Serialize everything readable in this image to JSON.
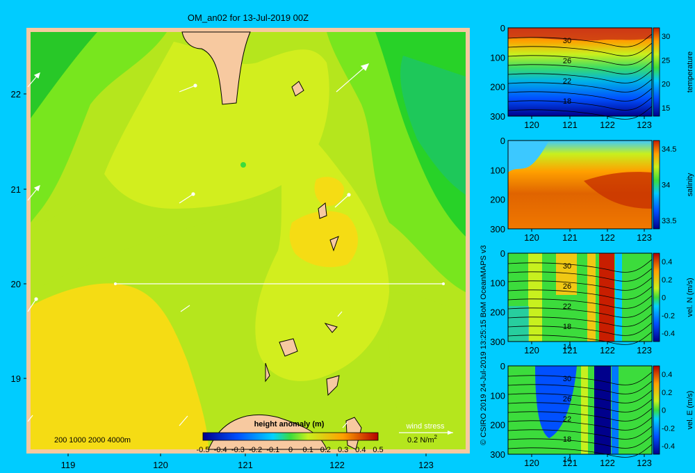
{
  "title": "OM_an02 for 13-Jul-2019 00Z",
  "map": {
    "lon_ticks": [
      "119",
      "120",
      "121",
      "122",
      "123"
    ],
    "lat_ticks": [
      "22",
      "21",
      "20",
      "19"
    ],
    "depth_legend": "200  1000  2000  4000m",
    "colorbar": {
      "title": "height anomaly (m)",
      "ticks": [
        "-0.5",
        "-0.4",
        "-0.3",
        "-0.2",
        "-0.1",
        "0",
        "0.1",
        "0.2",
        "0.3",
        "0.4",
        "0.5"
      ]
    },
    "wind_stress": {
      "label": "wind stress",
      "scale": "0.2 N/m",
      "superscript": "2"
    }
  },
  "panels": [
    {
      "name": "temperature",
      "ylabel": "temperature",
      "cticks": [
        "30",
        "25",
        "20",
        "15"
      ],
      "yticks": [
        "0",
        "100",
        "200",
        "300"
      ],
      "xticks": [
        "120",
        "121",
        "122",
        "123"
      ],
      "contours": [
        "30",
        "26",
        "22",
        "18"
      ]
    },
    {
      "name": "salinity",
      "ylabel": "salinity",
      "cticks": [
        "34.5",
        "34",
        "33.5"
      ],
      "yticks": [
        "0",
        "100",
        "200",
        "300"
      ],
      "xticks": [
        "120",
        "121",
        "122",
        "123"
      ],
      "contours": []
    },
    {
      "name": "vel-n",
      "ylabel": "vel. N (m/s)",
      "cticks": [
        "0.4",
        "0.2",
        "0",
        "-0.2",
        "-0.4"
      ],
      "yticks": [
        "0",
        "100",
        "200",
        "300"
      ],
      "xticks": [
        "120",
        "121",
        "122",
        "123"
      ],
      "contours": [
        "30",
        "26",
        "22",
        "18",
        "14"
      ]
    },
    {
      "name": "vel-e",
      "ylabel": "vel. E (m/s)",
      "cticks": [
        "0.4",
        "0.2",
        "0",
        "-0.2",
        "-0.4"
      ],
      "yticks": [
        "0",
        "100",
        "200",
        "300"
      ],
      "xticks": [
        "120",
        "121",
        "122",
        "123"
      ],
      "contours": [
        "30",
        "26",
        "22",
        "18",
        "14"
      ]
    }
  ],
  "credit": "© CSIRO 2019  24-Jul-2019 13:25:15 BoM OceanMAPS v3",
  "colors": {
    "background": "#00ccff",
    "land": "#f7c9a0",
    "anomaly_base": "#b5e61d"
  }
}
